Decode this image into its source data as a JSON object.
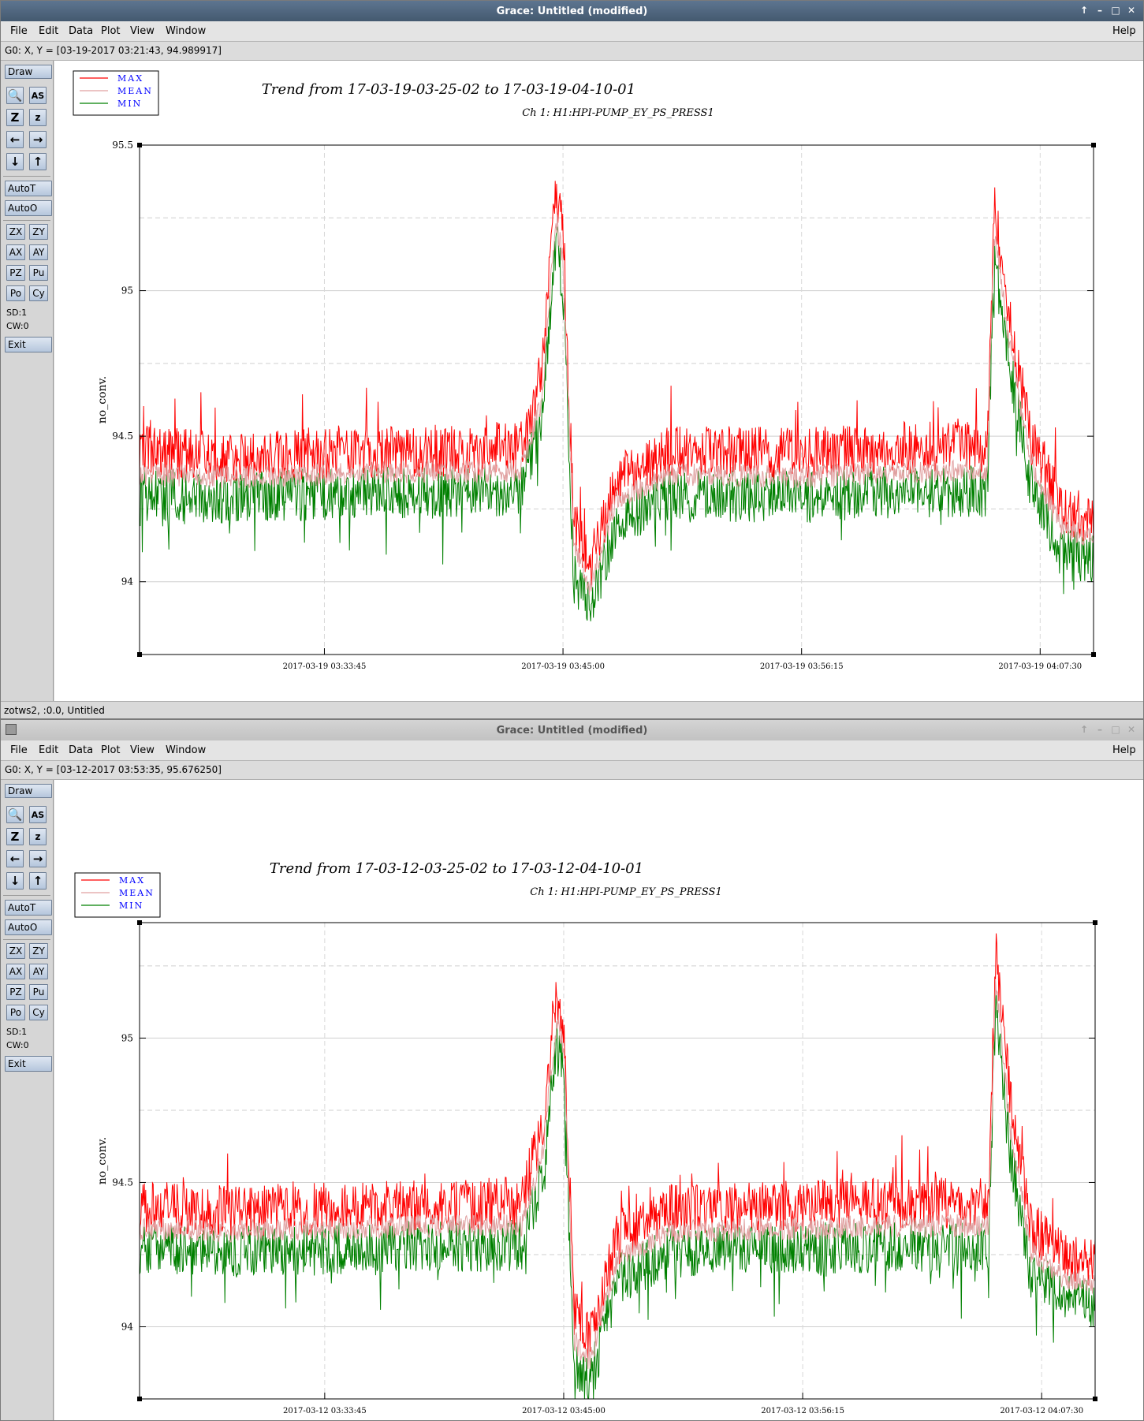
{
  "menu": [
    "File",
    "Edit",
    "Data",
    "Plot",
    "View",
    "Window"
  ],
  "help": "Help",
  "toolbar": {
    "draw": "Draw",
    "autot": "AutoT",
    "autoo": "AutoO",
    "zx": "ZX",
    "zy": "ZY",
    "ax": "AX",
    "ay": "AY",
    "pz": "PZ",
    "pu": "Pu",
    "po": "Po",
    "cy": "Cy",
    "sd": "SD:1",
    "cw": "CW:0",
    "exit": "Exit"
  },
  "windows": [
    {
      "title": "Grace: Untitled (modified)",
      "locator": "G0: X, Y = [03-19-2017 03:21:43, 94.989917]",
      "status": "zotws2, :0.0, Untitled"
    },
    {
      "title": "Grace: Untitled (modified)",
      "locator": "G0: X, Y = [03-12-2017 03:53:35, 95.676250]"
    }
  ],
  "colors": {
    "max": "#ff0000",
    "mean": "#e0a0a0",
    "min": "#008000",
    "legend_text": "#0000ff"
  },
  "chart_data": [
    {
      "type": "line",
      "title": "Trend from 17-03-19-03-25-02 to 17-03-19-04-10-01",
      "subtitle": "Ch 1: H1:HPI-PUMP_EY_PS_PRESS1",
      "ylabel": "no_conv.",
      "ylim": [
        93.75,
        95.5
      ],
      "yticks": [
        94,
        94.5,
        95,
        95.5
      ],
      "xlim": [
        "2017-03-19 03:25:02",
        "2017-03-19 04:10:01"
      ],
      "xticks": [
        "2017-03-19 03:33:45",
        "2017-03-19 03:45:00",
        "2017-03-19 03:56:15",
        "2017-03-19 04:07:30"
      ],
      "legend": [
        "MAX",
        "MEAN",
        "MIN"
      ],
      "grid": true,
      "legend_position": "top-left",
      "series": [
        {
          "name": "MAX",
          "x": [
            "03:25:02",
            "03:29:00",
            "03:33:45",
            "03:39:00",
            "03:43:00",
            "03:44:00",
            "03:44:40",
            "03:45:00",
            "03:45:30",
            "03:46:15",
            "03:47:30",
            "03:50:00",
            "03:56:15",
            "04:01:00",
            "04:05:00",
            "04:05:20",
            "04:06:00",
            "04:07:00",
            "04:08:30",
            "04:10:01"
          ],
          "values": [
            94.45,
            94.43,
            94.44,
            94.45,
            94.46,
            94.7,
            95.35,
            95.2,
            94.2,
            94.05,
            94.35,
            94.45,
            94.44,
            94.46,
            94.46,
            95.28,
            94.95,
            94.5,
            94.25,
            94.22
          ]
        },
        {
          "name": "MEAN",
          "x": [
            "03:25:02",
            "03:29:00",
            "03:33:45",
            "03:39:00",
            "03:43:00",
            "03:44:00",
            "03:44:40",
            "03:45:00",
            "03:45:30",
            "03:46:15",
            "03:47:30",
            "03:50:00",
            "03:56:15",
            "04:01:00",
            "04:05:00",
            "04:05:20",
            "04:06:00",
            "04:07:00",
            "04:08:30",
            "04:10:01"
          ],
          "values": [
            94.37,
            94.36,
            94.37,
            94.38,
            94.38,
            94.62,
            95.25,
            95.1,
            94.12,
            93.98,
            94.28,
            94.37,
            94.36,
            94.38,
            94.38,
            95.2,
            94.85,
            94.42,
            94.18,
            94.15
          ]
        },
        {
          "name": "MIN",
          "x": [
            "03:25:02",
            "03:29:00",
            "03:33:45",
            "03:39:00",
            "03:43:00",
            "03:44:00",
            "03:44:40",
            "03:45:00",
            "03:45:30",
            "03:46:15",
            "03:47:30",
            "03:50:00",
            "03:56:15",
            "04:01:00",
            "04:05:00",
            "04:05:20",
            "04:06:00",
            "04:07:00",
            "04:08:30",
            "04:10:01"
          ],
          "values": [
            94.3,
            94.29,
            94.3,
            94.31,
            94.31,
            94.55,
            95.18,
            95.02,
            94.02,
            93.9,
            94.2,
            94.3,
            94.29,
            94.31,
            94.31,
            95.12,
            94.78,
            94.35,
            94.1,
            94.07
          ]
        }
      ]
    },
    {
      "type": "line",
      "title": "Trend from 17-03-12-03-25-02 to 17-03-12-04-10-01",
      "subtitle": "Ch 1: H1:HPI-PUMP_EY_PS_PRESS1",
      "ylabel": "no_conv.",
      "ylim": [
        93.75,
        95.4
      ],
      "yticks": [
        94,
        94.5,
        95
      ],
      "xlim": [
        "2017-03-12 03:25:02",
        "2017-03-12 04:10:01"
      ],
      "xticks": [
        "2017-03-12 03:33:45",
        "2017-03-12 03:45:00",
        "2017-03-12 03:56:15",
        "2017-03-12 04:07:30"
      ],
      "legend": [
        "MAX",
        "MEAN",
        "MIN"
      ],
      "grid": true,
      "legend_position": "top-left",
      "series": [
        {
          "name": "MAX",
          "x": [
            "03:25:02",
            "03:29:00",
            "03:33:45",
            "03:39:00",
            "03:43:00",
            "03:44:00",
            "03:44:40",
            "03:45:00",
            "03:45:30",
            "03:46:15",
            "03:47:30",
            "03:50:00",
            "03:56:15",
            "04:01:00",
            "04:05:00",
            "04:05:20",
            "04:06:00",
            "04:07:00",
            "04:08:30",
            "04:10:01"
          ],
          "values": [
            94.42,
            94.4,
            94.41,
            94.42,
            94.43,
            94.7,
            95.15,
            95.05,
            94.05,
            93.95,
            94.3,
            94.4,
            94.42,
            94.43,
            94.43,
            95.3,
            94.8,
            94.35,
            94.25,
            94.22
          ]
        },
        {
          "name": "MEAN",
          "x": [
            "03:25:02",
            "03:29:00",
            "03:33:45",
            "03:39:00",
            "03:43:00",
            "03:44:00",
            "03:44:40",
            "03:45:00",
            "03:45:30",
            "03:46:15",
            "03:47:30",
            "03:50:00",
            "03:56:15",
            "04:01:00",
            "04:05:00",
            "04:05:20",
            "04:06:00",
            "04:07:00",
            "04:08:30",
            "04:10:01"
          ],
          "values": [
            94.34,
            94.33,
            94.34,
            94.35,
            94.35,
            94.6,
            95.06,
            94.96,
            93.95,
            93.88,
            94.23,
            94.33,
            94.34,
            94.35,
            94.35,
            95.2,
            94.7,
            94.26,
            94.17,
            94.14
          ]
        },
        {
          "name": "MIN",
          "x": [
            "03:25:02",
            "03:29:00",
            "03:33:45",
            "03:39:00",
            "03:43:00",
            "03:44:00",
            "03:44:40",
            "03:45:00",
            "03:45:30",
            "03:46:15",
            "03:47:30",
            "03:50:00",
            "03:56:15",
            "04:01:00",
            "04:05:00",
            "04:05:20",
            "04:06:00",
            "04:07:00",
            "04:08:30",
            "04:10:01"
          ],
          "values": [
            94.27,
            94.26,
            94.27,
            94.28,
            94.28,
            94.52,
            94.98,
            94.88,
            93.85,
            93.8,
            94.16,
            94.26,
            94.27,
            94.28,
            94.28,
            95.12,
            94.62,
            94.18,
            94.1,
            94.07
          ]
        }
      ]
    }
  ]
}
